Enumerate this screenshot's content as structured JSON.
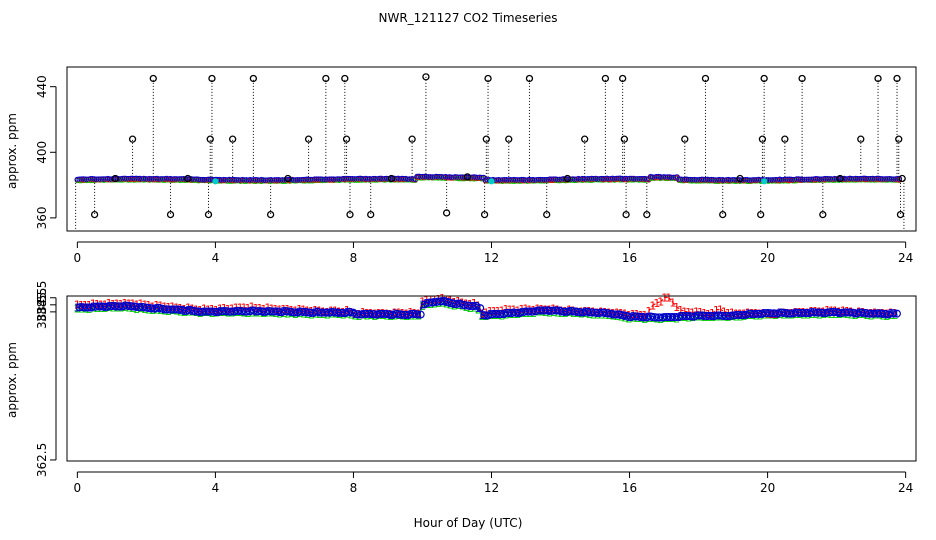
{
  "chart_data": {
    "title": "NWR_121127  CO2 Timeseries",
    "xlabel": "Hour of Day (UTC)",
    "colors": {
      "series1": "#ff0000",
      "series2": "#00cc00",
      "series3": "#0000cc",
      "flagged": "#000000",
      "cyan": "#00cccc"
    },
    "panels": [
      {
        "type": "scatter",
        "name": "overview",
        "ylabel": "approx. ppm",
        "xlim": [
          -0.3,
          24.3
        ],
        "ylim": [
          352,
          452
        ],
        "x_ticks": [
          "0",
          "4",
          "8",
          "12",
          "16",
          "20",
          "24"
        ],
        "y_ticks": [
          "360",
          "400",
          "440"
        ],
        "baseline_ppm": 383.2,
        "flagged_hours": [
          {
            "x": 0.5,
            "y": 362
          },
          {
            "x": 1.1,
            "y": 384
          },
          {
            "x": 1.6,
            "y": 408
          },
          {
            "x": 2.2,
            "y": 445
          },
          {
            "x": 2.7,
            "y": 362
          },
          {
            "x": 3.2,
            "y": 384
          },
          {
            "x": 3.8,
            "y": 362
          },
          {
            "x": 3.85,
            "y": 408
          },
          {
            "x": 3.9,
            "y": 445
          },
          {
            "x": 4.5,
            "y": 408
          },
          {
            "x": 5.1,
            "y": 445
          },
          {
            "x": 5.6,
            "y": 362
          },
          {
            "x": 6.1,
            "y": 384
          },
          {
            "x": 6.7,
            "y": 408
          },
          {
            "x": 7.2,
            "y": 445
          },
          {
            "x": 7.75,
            "y": 445
          },
          {
            "x": 7.8,
            "y": 408
          },
          {
            "x": 7.9,
            "y": 362
          },
          {
            "x": 8.5,
            "y": 362
          },
          {
            "x": 9.1,
            "y": 384
          },
          {
            "x": 9.7,
            "y": 408
          },
          {
            "x": 10.1,
            "y": 446
          },
          {
            "x": 10.7,
            "y": 363
          },
          {
            "x": 11.3,
            "y": 385
          },
          {
            "x": 11.8,
            "y": 362
          },
          {
            "x": 11.85,
            "y": 408
          },
          {
            "x": 11.9,
            "y": 445
          },
          {
            "x": 12.5,
            "y": 408
          },
          {
            "x": 13.1,
            "y": 445
          },
          {
            "x": 13.6,
            "y": 362
          },
          {
            "x": 14.2,
            "y": 384
          },
          {
            "x": 14.7,
            "y": 408
          },
          {
            "x": 15.3,
            "y": 445
          },
          {
            "x": 15.8,
            "y": 445
          },
          {
            "x": 15.85,
            "y": 408
          },
          {
            "x": 15.9,
            "y": 362
          },
          {
            "x": 16.5,
            "y": 362
          },
          {
            "x": 17.6,
            "y": 408
          },
          {
            "x": 18.2,
            "y": 445
          },
          {
            "x": 18.7,
            "y": 362
          },
          {
            "x": 19.2,
            "y": 384
          },
          {
            "x": 19.8,
            "y": 362
          },
          {
            "x": 19.85,
            "y": 408
          },
          {
            "x": 19.9,
            "y": 445
          },
          {
            "x": 20.5,
            "y": 408
          },
          {
            "x": 21.0,
            "y": 445
          },
          {
            "x": 21.6,
            "y": 362
          },
          {
            "x": 22.1,
            "y": 384
          },
          {
            "x": 22.7,
            "y": 408
          },
          {
            "x": 23.2,
            "y": 445
          },
          {
            "x": 23.75,
            "y": 445
          },
          {
            "x": 23.8,
            "y": 408
          },
          {
            "x": 23.85,
            "y": 362
          },
          {
            "x": 23.9,
            "y": 384
          }
        ],
        "cyan_points": [
          {
            "x": 4.0,
            "y": 382.3
          },
          {
            "x": 12.0,
            "y": 382.3
          },
          {
            "x": 19.9,
            "y": 382.3
          }
        ]
      },
      {
        "type": "line",
        "name": "detail",
        "ylabel": "approx. ppm",
        "xlim": [
          -0.3,
          24.3
        ],
        "ylim": [
          362.35,
          385.75
        ],
        "x_ticks": [
          "0",
          "4",
          "8",
          "12",
          "16",
          "20",
          "24"
        ],
        "y_ticks": [
          "362.5",
          "383.5",
          "384.5",
          "385.5"
        ],
        "series": [
          {
            "name": "1",
            "label": "1",
            "color": "#ff0000"
          },
          {
            "name": "2",
            "label": "2",
            "color": "#00cc00"
          },
          {
            "name": "3",
            "label": "3",
            "color": "#0000cc"
          }
        ],
        "knots_series1": [
          [
            0,
            384.4
          ],
          [
            1.5,
            384.7
          ],
          [
            2.6,
            384.2
          ],
          [
            3.8,
            383.8
          ],
          [
            5.0,
            384.1
          ],
          [
            7.0,
            383.6
          ],
          [
            7.9,
            383.6
          ],
          [
            8.0,
            383.3
          ],
          [
            9.9,
            383.3
          ],
          [
            10.0,
            385.0
          ],
          [
            10.5,
            385.4
          ],
          [
            11.0,
            384.9
          ],
          [
            11.6,
            384.5
          ],
          [
            11.7,
            383.3
          ],
          [
            12.5,
            383.8
          ],
          [
            13.5,
            383.9
          ],
          [
            14.5,
            383.6
          ],
          [
            15.5,
            383.4
          ],
          [
            16.0,
            383.1
          ],
          [
            16.5,
            383.1
          ],
          [
            16.7,
            384.5
          ],
          [
            17.1,
            385.6
          ],
          [
            17.5,
            383.6
          ],
          [
            18.3,
            383.3
          ],
          [
            18.6,
            383.9
          ],
          [
            19.0,
            383.3
          ],
          [
            19.5,
            383.4
          ],
          [
            20.2,
            383.3
          ],
          [
            21.0,
            383.5
          ],
          [
            22.0,
            383.7
          ],
          [
            23.0,
            383.4
          ],
          [
            23.8,
            383.3
          ]
        ],
        "knots_series3": [
          [
            0,
            384.1
          ],
          [
            1.3,
            384.35
          ],
          [
            2.5,
            383.9
          ],
          [
            3.7,
            383.5
          ],
          [
            5.0,
            383.6
          ],
          [
            7.0,
            383.4
          ],
          [
            7.9,
            383.4
          ],
          [
            8.0,
            383.2
          ],
          [
            9.9,
            383.1
          ],
          [
            10.0,
            384.6
          ],
          [
            10.5,
            385.0
          ],
          [
            11.0,
            384.6
          ],
          [
            11.6,
            384.2
          ],
          [
            11.7,
            383.0
          ],
          [
            12.5,
            383.3
          ],
          [
            13.5,
            383.7
          ],
          [
            14.5,
            383.5
          ],
          [
            15.5,
            383.2
          ],
          [
            16.0,
            382.8
          ],
          [
            17.0,
            382.7
          ],
          [
            18.0,
            382.95
          ],
          [
            19.0,
            383.0
          ],
          [
            19.5,
            383.2
          ],
          [
            20.0,
            383.3
          ],
          [
            21.0,
            383.4
          ],
          [
            22.0,
            383.45
          ],
          [
            23.0,
            383.3
          ],
          [
            23.8,
            383.2
          ]
        ],
        "knots_series2": [
          [
            0,
            383.9
          ],
          [
            1.3,
            384.15
          ],
          [
            2.5,
            383.7
          ],
          [
            3.7,
            383.4
          ],
          [
            5.0,
            383.4
          ],
          [
            7.0,
            383.2
          ],
          [
            7.9,
            383.2
          ],
          [
            8.0,
            383.0
          ],
          [
            9.9,
            382.95
          ],
          [
            10.0,
            384.4
          ],
          [
            10.5,
            384.8
          ],
          [
            11.0,
            384.4
          ],
          [
            11.6,
            384.0
          ],
          [
            11.7,
            382.9
          ],
          [
            12.5,
            383.1
          ],
          [
            13.5,
            383.5
          ],
          [
            14.5,
            383.3
          ],
          [
            15.5,
            383.0
          ],
          [
            16.0,
            382.6
          ],
          [
            17.0,
            382.55
          ],
          [
            18.0,
            382.8
          ],
          [
            19.0,
            382.85
          ],
          [
            19.5,
            383.0
          ],
          [
            20.0,
            383.1
          ],
          [
            21.0,
            383.2
          ],
          [
            22.0,
            383.25
          ],
          [
            23.0,
            383.1
          ],
          [
            23.8,
            383.0
          ]
        ]
      }
    ]
  }
}
